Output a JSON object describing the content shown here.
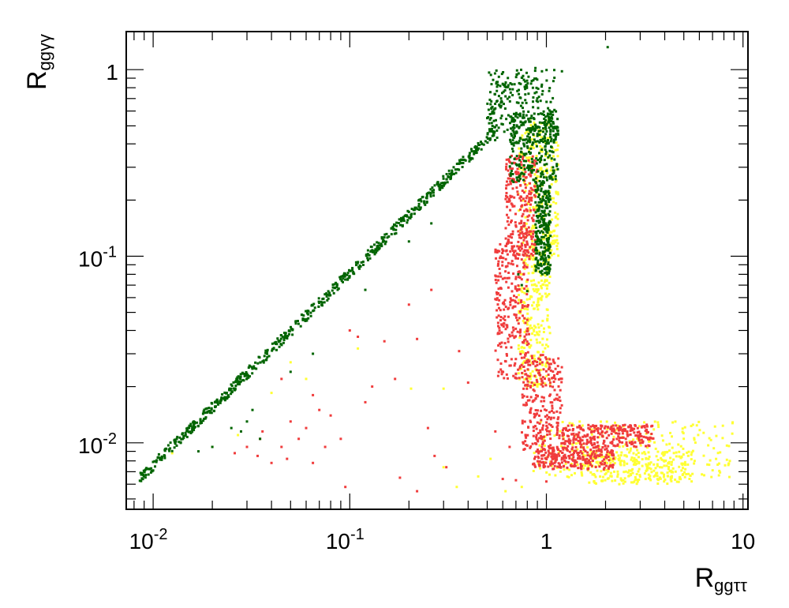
{
  "chart_data": {
    "type": "scatter",
    "title": "",
    "xlabel": {
      "main": "R",
      "sub": "ggττ"
    },
    "ylabel": {
      "main": "R",
      "sub": "ggγγ"
    },
    "x_scale": "log",
    "y_scale": "log",
    "xlim": [
      0.0073,
      10.6
    ],
    "ylim": [
      0.0044,
      1.6
    ],
    "grid": false,
    "legend": "none",
    "x_ticks": [
      {
        "value": 0.01,
        "base": "10",
        "exp": "-2"
      },
      {
        "value": 0.1,
        "base": "10",
        "exp": "-1"
      },
      {
        "value": 1,
        "base": "1",
        "exp": ""
      },
      {
        "value": 10,
        "base": "10",
        "exp": ""
      }
    ],
    "y_ticks": [
      {
        "value": 0.01,
        "base": "10",
        "exp": "-2"
      },
      {
        "value": 0.1,
        "base": "10",
        "exp": "-1"
      },
      {
        "value": 1,
        "base": "1",
        "exp": ""
      }
    ],
    "series": [
      {
        "color": "#ffff33",
        "regions": [
          {
            "x": [
              0.72,
              1.15
            ],
            "y": [
              0.1,
              0.55
            ]
          },
          {
            "x": [
              0.72,
              1.05
            ],
            "y": [
              0.02,
              0.1
            ]
          },
          {
            "x": [
              0.85,
              9.0
            ],
            "y": [
              0.0065,
              0.013
            ]
          },
          {
            "x": [
              1.5,
              5.5
            ],
            "y": [
              0.006,
              0.009
            ]
          }
        ],
        "points": [
          [
            0.0125,
            0.0088
          ],
          [
            0.02,
            0.0095
          ],
          [
            0.027,
            0.011
          ],
          [
            0.04,
            0.0185
          ],
          [
            0.05,
            0.027
          ],
          [
            0.06,
            0.022
          ],
          [
            0.11,
            0.032
          ],
          [
            0.205,
            0.0195
          ],
          [
            0.3,
            0.0074
          ],
          [
            0.45,
            0.0066
          ],
          [
            0.52,
            0.0082
          ],
          [
            0.9,
            0.02
          ],
          [
            0.62,
            0.0055
          ],
          [
            0.75,
            0.0058
          ],
          [
            0.3,
            0.0195
          ],
          [
            0.35,
            0.0058
          ]
        ]
      },
      {
        "color": "#f03c3c",
        "regions": [
          {
            "x": [
              0.55,
              0.82
            ],
            "y": [
              0.022,
              0.12
            ]
          },
          {
            "x": [
              0.62,
              0.9
            ],
            "y": [
              0.1,
              0.35
            ]
          },
          {
            "x": [
              0.75,
              1.2
            ],
            "y": [
              0.009,
              0.03
            ]
          },
          {
            "x": [
              1.2,
              3.5
            ],
            "y": [
              0.0095,
              0.0125
            ]
          },
          {
            "x": [
              0.85,
              2.2
            ],
            "y": [
              0.0072,
              0.0095
            ]
          }
        ],
        "points": [
          [
            0.026,
            0.0088
          ],
          [
            0.03,
            0.0095
          ],
          [
            0.034,
            0.0085
          ],
          [
            0.036,
            0.0115
          ],
          [
            0.04,
            0.0078
          ],
          [
            0.045,
            0.0095
          ],
          [
            0.048,
            0.0082
          ],
          [
            0.05,
            0.013
          ],
          [
            0.055,
            0.0105
          ],
          [
            0.06,
            0.012
          ],
          [
            0.065,
            0.0078
          ],
          [
            0.07,
            0.015
          ],
          [
            0.075,
            0.0095
          ],
          [
            0.08,
            0.014
          ],
          [
            0.09,
            0.0105
          ],
          [
            0.095,
            0.0058
          ],
          [
            0.1,
            0.04
          ],
          [
            0.11,
            0.037
          ],
          [
            0.12,
            0.0165
          ],
          [
            0.13,
            0.02
          ],
          [
            0.15,
            0.035
          ],
          [
            0.17,
            0.022
          ],
          [
            0.2,
            0.055
          ],
          [
            0.22,
            0.0055
          ],
          [
            0.26,
            0.066
          ],
          [
            0.25,
            0.012
          ],
          [
            0.27,
            0.0085
          ],
          [
            0.31,
            0.0074
          ],
          [
            0.36,
            0.031
          ],
          [
            0.4,
            0.021
          ],
          [
            0.55,
            0.0115
          ],
          [
            0.6,
            0.0064
          ],
          [
            0.65,
            0.0095
          ],
          [
            0.7,
            0.0063
          ],
          [
            1.0,
            0.0062
          ],
          [
            0.045,
            0.022
          ],
          [
            0.065,
            0.018
          ],
          [
            0.035,
            0.0105
          ],
          [
            0.18,
            0.0065
          ],
          [
            0.22,
            0.036
          ]
        ]
      },
      {
        "color": "#006400",
        "regions": [
          {
            "x": [
              0.5,
              1.1
            ],
            "y": [
              0.4,
              1.0
            ]
          },
          {
            "x": [
              0.65,
              1.15
            ],
            "y": [
              0.25,
              0.6
            ]
          },
          {
            "x": [
              0.88,
              1.05
            ],
            "y": [
              0.08,
              0.25
            ]
          }
        ],
        "diagonal": {
          "x_from": 0.0085,
          "x_to": 0.55,
          "slope": 1.03,
          "intercept_at_1": 0.87
        },
        "points": [
          [
            0.26,
            0.15
          ],
          [
            0.2,
            0.12
          ],
          [
            0.12,
            0.066
          ],
          [
            0.05,
            0.024
          ],
          [
            0.065,
            0.03
          ],
          [
            0.032,
            0.015
          ],
          [
            0.025,
            0.012
          ],
          [
            0.03,
            0.013
          ],
          [
            0.028,
            0.0115
          ],
          [
            0.035,
            0.0105
          ],
          [
            0.02,
            0.0095
          ],
          [
            0.017,
            0.009
          ],
          [
            0.75,
            0.07
          ],
          [
            0.72,
            0.08
          ],
          [
            0.8,
            0.065
          ],
          [
            0.9,
            0.12
          ],
          [
            0.5,
            0.55
          ],
          [
            0.55,
            0.62
          ],
          [
            0.95,
            0.98
          ],
          [
            2.05,
            1.32
          ],
          [
            1.2,
            0.98
          ],
          [
            0.88,
            1.02
          ]
        ]
      }
    ]
  }
}
